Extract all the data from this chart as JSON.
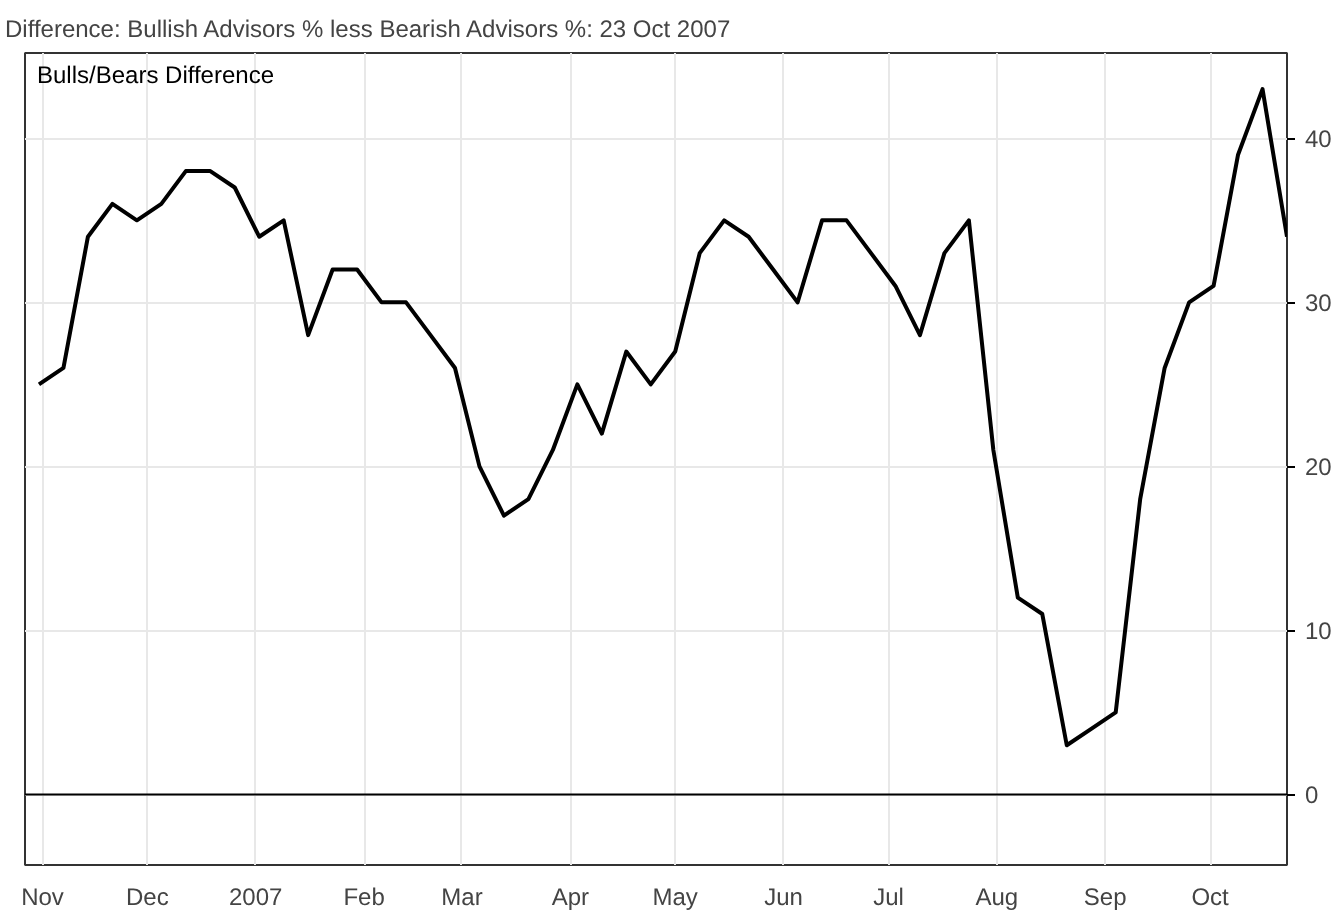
{
  "chart_data": {
    "type": "line",
    "title": "Difference: Bullish Advisors % less Bearish Advisors %: 23 Oct 2007",
    "annotations": [
      "Bulls/Bears Difference"
    ],
    "x": [
      "2006-10-31",
      "2006-11-07",
      "2006-11-14",
      "2006-11-21",
      "2006-11-28",
      "2006-12-05",
      "2006-12-12",
      "2006-12-19",
      "2006-12-26",
      "2007-01-02",
      "2007-01-09",
      "2007-01-16",
      "2007-01-23",
      "2007-01-30",
      "2007-02-06",
      "2007-02-13",
      "2007-02-20",
      "2007-02-27",
      "2007-03-06",
      "2007-03-13",
      "2007-03-20",
      "2007-03-27",
      "2007-04-03",
      "2007-04-10",
      "2007-04-17",
      "2007-04-24",
      "2007-05-01",
      "2007-05-08",
      "2007-05-15",
      "2007-05-22",
      "2007-05-29",
      "2007-06-05",
      "2007-06-12",
      "2007-06-19",
      "2007-06-26",
      "2007-07-03",
      "2007-07-10",
      "2007-07-17",
      "2007-07-24",
      "2007-07-31",
      "2007-08-07",
      "2007-08-14",
      "2007-08-21",
      "2007-08-28",
      "2007-09-04",
      "2007-09-11",
      "2007-09-18",
      "2007-09-25",
      "2007-10-02",
      "2007-10-09",
      "2007-10-16",
      "2007-10-23"
    ],
    "series": [
      {
        "color": "#000000",
        "values": [
          25,
          26,
          34,
          36,
          35,
          36,
          38,
          38,
          37,
          34,
          35,
          28,
          32,
          32,
          30,
          30,
          28,
          26,
          20,
          17,
          18,
          21,
          25,
          22,
          27,
          25,
          27,
          33,
          35,
          34,
          32,
          30,
          35,
          35,
          33,
          31,
          28,
          33,
          35,
          21,
          12,
          11,
          3,
          4,
          5,
          18,
          26,
          30,
          31,
          39,
          43,
          34
        ]
      }
    ],
    "xlim": [
      "2006-10-27",
      "2007-10-23"
    ],
    "xticks": [
      {
        "value": "2006-11-01",
        "label": "Nov"
      },
      {
        "value": "2006-12-01",
        "label": "Dec"
      },
      {
        "value": "2007-01-01",
        "label": "2007"
      },
      {
        "value": "2007-02-01",
        "label": "Feb"
      },
      {
        "value": "2007-03-01",
        "label": "Mar"
      },
      {
        "value": "2007-04-01",
        "label": "Apr"
      },
      {
        "value": "2007-05-01",
        "label": "May"
      },
      {
        "value": "2007-06-01",
        "label": "Jun"
      },
      {
        "value": "2007-07-01",
        "label": "Jul"
      },
      {
        "value": "2007-08-01",
        "label": "Aug"
      },
      {
        "value": "2007-09-01",
        "label": "Sep"
      },
      {
        "value": "2007-10-01",
        "label": "Oct"
      }
    ],
    "ylim": [
      -4.3,
      45.2
    ],
    "yticks": [
      0,
      10,
      20,
      30,
      40
    ],
    "ref_lines": [
      {
        "axis": "y",
        "value": 0,
        "color": "#000000"
      }
    ],
    "grid": true,
    "line_style": "solid"
  }
}
